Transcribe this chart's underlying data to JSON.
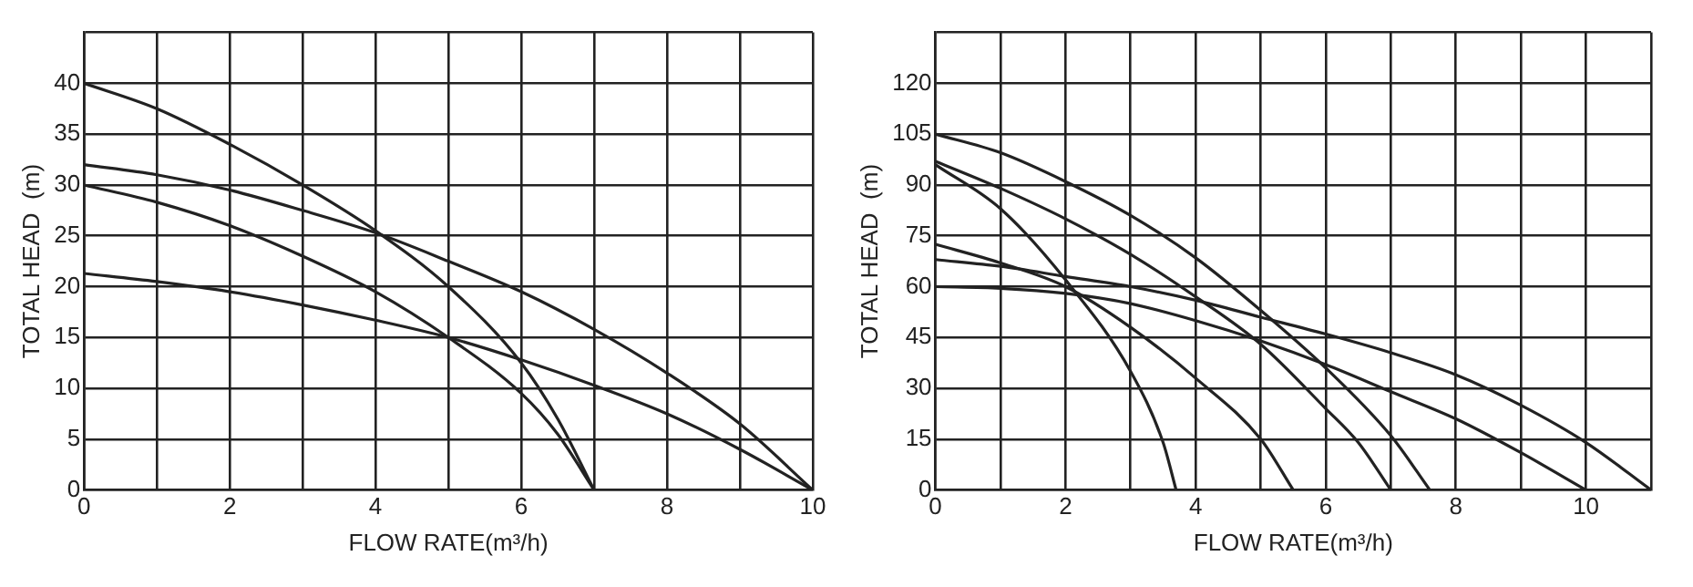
{
  "chart_data": [
    {
      "type": "line",
      "xlabel": "FLOW RATE(m³/h)",
      "ylabel": "TOTAL HEAD  (m)",
      "xlim": [
        0,
        10
      ],
      "xticks": [
        0,
        {
          "value": 1,
          "label": null
        },
        2,
        {
          "value": 3,
          "label": null
        },
        4,
        {
          "value": 5,
          "label": null
        },
        6,
        {
          "value": 7,
          "label": null
        },
        8,
        {
          "value": 9,
          "label": null
        },
        10
      ],
      "ylim": [
        0,
        45
      ],
      "yticks": [
        0,
        5,
        10,
        15,
        20,
        25,
        30,
        35,
        40,
        {
          "value": 45,
          "label": null
        }
      ],
      "grid": true,
      "marker": "none",
      "line_style": "solid",
      "series": [
        {
          "color": "#222222",
          "x": [
            0,
            1,
            2,
            3,
            4,
            5,
            6,
            6.5,
            7
          ],
          "values": [
            40,
            37.5,
            34,
            30,
            25.5,
            20,
            12.5,
            7,
            0
          ]
        },
        {
          "color": "#222222",
          "x": [
            0,
            1,
            2,
            3,
            4,
            5,
            6,
            7,
            8,
            9,
            10
          ],
          "values": [
            32,
            31,
            29.5,
            27.5,
            25.3,
            22.5,
            19.5,
            15.8,
            11.5,
            6.5,
            0
          ]
        },
        {
          "color": "#222222",
          "x": [
            0,
            1,
            2,
            3,
            4,
            5,
            6,
            6.5,
            7
          ],
          "values": [
            30,
            28.3,
            26,
            23,
            19.5,
            15,
            9.5,
            5.5,
            0
          ]
        },
        {
          "color": "#222222",
          "x": [
            0,
            1,
            2,
            3,
            4,
            5,
            6,
            7,
            8,
            9,
            10
          ],
          "values": [
            21.3,
            20.5,
            19.5,
            18.2,
            16.7,
            15,
            12.8,
            10.3,
            7.5,
            4,
            0
          ]
        }
      ]
    },
    {
      "type": "line",
      "xlabel": "FLOW RATE(m³/h)",
      "ylabel": "TOTAL HEAD  (m)",
      "xlim": [
        0,
        11
      ],
      "xticks": [
        0,
        {
          "value": 1,
          "label": null
        },
        2,
        {
          "value": 3,
          "label": null
        },
        4,
        {
          "value": 5,
          "label": null
        },
        6,
        {
          "value": 7,
          "label": null
        },
        8,
        {
          "value": 9,
          "label": null
        },
        10,
        {
          "value": 11,
          "label": null
        }
      ],
      "ylim": [
        0,
        135
      ],
      "yticks": [
        0,
        15,
        30,
        45,
        60,
        75,
        90,
        105,
        120,
        {
          "value": 135,
          "label": null
        }
      ],
      "grid": true,
      "marker": "none",
      "line_style": "solid",
      "series": [
        {
          "color": "#222222",
          "x": [
            0,
            1,
            2,
            3,
            4,
            5,
            6,
            7,
            7.6
          ],
          "values": [
            105,
            99.5,
            91,
            81,
            68.5,
            53,
            36,
            16,
            0
          ]
        },
        {
          "color": "#222222",
          "x": [
            0,
            1,
            2,
            3,
            4,
            5,
            6,
            6.5,
            7
          ],
          "values": [
            97,
            89,
            80,
            69.5,
            57,
            43,
            24,
            14,
            0
          ]
        },
        {
          "color": "#222222",
          "x": [
            0,
            1,
            2,
            3,
            3.5,
            3.7
          ],
          "values": [
            96,
            83,
            62,
            35,
            14,
            0
          ]
        },
        {
          "color": "#222222",
          "x": [
            0,
            1,
            2,
            3,
            4,
            5,
            5.5
          ],
          "values": [
            72.5,
            67,
            60,
            48,
            33,
            15,
            0
          ]
        },
        {
          "color": "#222222",
          "x": [
            0,
            1,
            2,
            3,
            4,
            5,
            6,
            7,
            8,
            9,
            10,
            11
          ],
          "values": [
            68,
            66,
            63,
            60,
            56,
            51,
            46,
            40.5,
            34,
            25,
            14,
            0
          ]
        },
        {
          "color": "#222222",
          "x": [
            0,
            1,
            2,
            3,
            4,
            5,
            6,
            7,
            8,
            9,
            10
          ],
          "values": [
            60,
            59.5,
            58,
            55,
            50,
            44,
            37,
            29,
            21,
            11,
            0
          ]
        }
      ]
    }
  ]
}
